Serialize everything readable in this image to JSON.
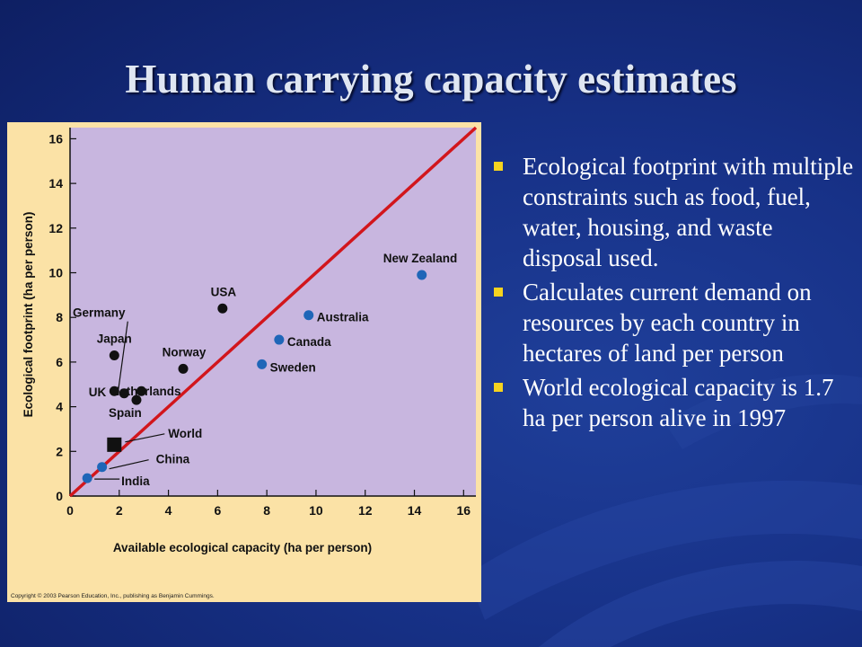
{
  "slide": {
    "title": "Human carrying capacity estimates",
    "bullets": [
      "Ecological footprint with multiple constraints such as food, fuel, water, housing, and waste disposal used.",
      "Calculates current demand on resources by each country in hectares of land per person",
      "World ecological capacity is 1.7 ha per person alive in 1997"
    ],
    "bullet_marker_icon": "square-bullet-icon",
    "colors": {
      "background": "#173187",
      "title": "#dfe6f2",
      "bullet_marker": "#f5d31f",
      "figure_background": "#fbe2a6",
      "plot_background": "#c8b6df",
      "reference_line": "#d2161c",
      "point_blue": "#1f66b8",
      "point_black": "#111111"
    }
  },
  "chart_data": {
    "type": "scatter",
    "xlabel": "Available ecological capacity (ha per person)",
    "ylabel": "Ecological footprint (ha per person)",
    "xlim": [
      0,
      16.5
    ],
    "ylim": [
      0,
      16.5
    ],
    "xticks": [
      0,
      2,
      4,
      6,
      8,
      10,
      12,
      14,
      16
    ],
    "yticks": [
      0,
      2,
      4,
      6,
      8,
      10,
      12,
      14,
      16
    ],
    "grid": false,
    "reference_line": {
      "from": [
        0,
        0
      ],
      "to": [
        16.5,
        16.5
      ]
    },
    "points": [
      {
        "label": "New Zealand",
        "x": 14.3,
        "y": 9.9,
        "color": "blue"
      },
      {
        "label": "Australia",
        "x": 9.7,
        "y": 8.1,
        "color": "blue"
      },
      {
        "label": "Canada",
        "x": 8.5,
        "y": 7.0,
        "color": "blue"
      },
      {
        "label": "Sweden",
        "x": 7.8,
        "y": 5.9,
        "color": "blue"
      },
      {
        "label": "USA",
        "x": 6.2,
        "y": 8.4,
        "color": "black"
      },
      {
        "label": "Norway",
        "x": 4.6,
        "y": 5.7,
        "color": "black"
      },
      {
        "label": "Germany",
        "x": 2.2,
        "y": 4.6,
        "color": "black"
      },
      {
        "label": "Japan",
        "x": 1.8,
        "y": 6.3,
        "color": "black"
      },
      {
        "label": "UK",
        "x": 1.8,
        "y": 4.7,
        "color": "black"
      },
      {
        "label": "Netherlands",
        "x": 2.9,
        "y": 4.7,
        "color": "black"
      },
      {
        "label": "Spain",
        "x": 2.7,
        "y": 4.3,
        "color": "black"
      },
      {
        "label": "World",
        "x": 1.8,
        "y": 2.3,
        "color": "black",
        "marker": "square"
      },
      {
        "label": "China",
        "x": 1.3,
        "y": 1.3,
        "color": "blue"
      },
      {
        "label": "India",
        "x": 0.7,
        "y": 0.8,
        "color": "blue"
      }
    ],
    "copyright": "Copyright © 2003 Pearson Education, Inc., publishing as Benjamin Cummings."
  }
}
